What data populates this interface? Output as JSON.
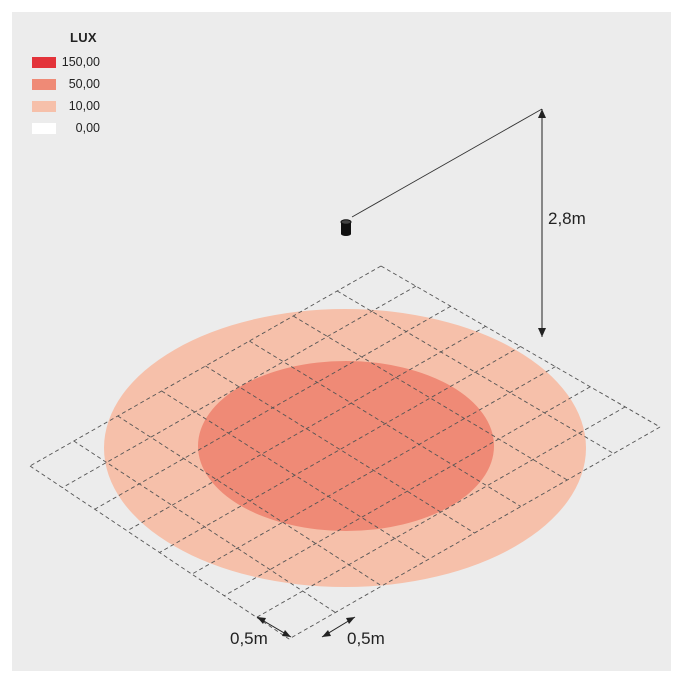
{
  "legend": {
    "title": "LUX",
    "items": [
      {
        "value": "150,00",
        "color": "#e3333a"
      },
      {
        "value": "50,00",
        "color": "#ef8a76"
      },
      {
        "value": "10,00",
        "color": "#f6c0aa"
      },
      {
        "value": "0,00",
        "color": "#ffffff"
      }
    ]
  },
  "dimensions": {
    "height": "2,8m",
    "grid_x": "0,5m",
    "grid_y": "0,5m"
  },
  "colors": {
    "background": "#ececec",
    "outer_zone": "#f6c0aa",
    "inner_zone": "#ef8a76"
  }
}
